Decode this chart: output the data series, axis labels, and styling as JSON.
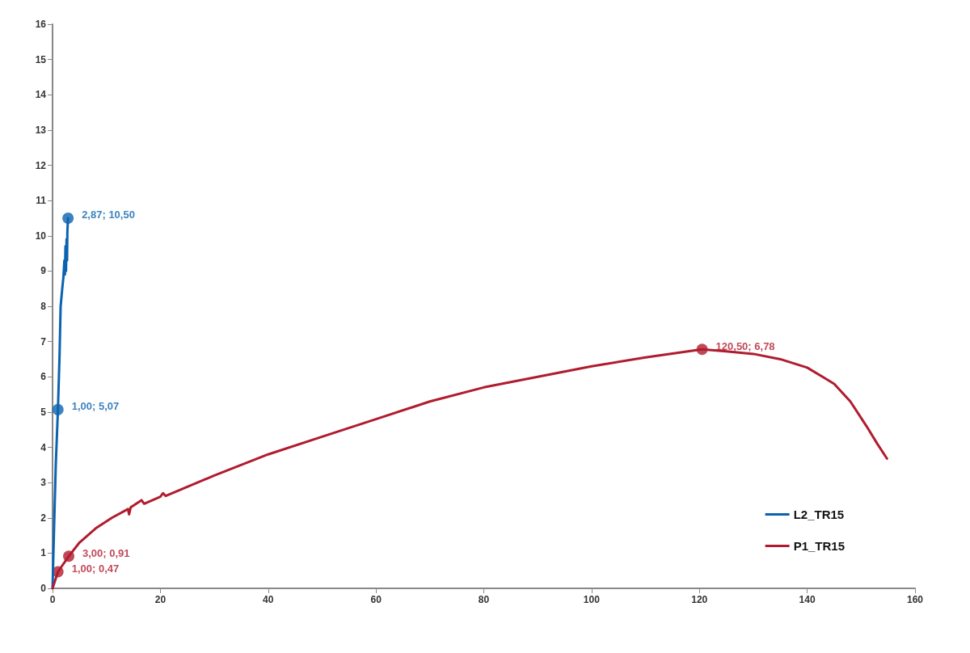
{
  "chart_data": {
    "type": "line",
    "series": [
      {
        "name": "L2_TR15",
        "color": "#0b63b0",
        "x": [
          0,
          0.3,
          0.6,
          1,
          1.3,
          1.5,
          1.8,
          2.0,
          2.2,
          2.3,
          2.4,
          2.5,
          2.6,
          2.7,
          2.75,
          2.87
        ],
        "values": [
          0,
          1.8,
          3.5,
          5.07,
          6.6,
          8.0,
          8.5,
          8.8,
          9.3,
          8.9,
          9.7,
          9.0,
          9.9,
          9.3,
          10.1,
          10.5
        ]
      },
      {
        "name": "P1_TR15",
        "color": "#b01c2e",
        "x": [
          0,
          1,
          3,
          5,
          8,
          11,
          14,
          14.2,
          14.5,
          16.5,
          17,
          20,
          20.5,
          21,
          30,
          40,
          50,
          60,
          70,
          80,
          90,
          100,
          110,
          120.5,
          125,
          130,
          135,
          140,
          145,
          148,
          151,
          153,
          154.8
        ],
        "values": [
          0,
          0.47,
          0.91,
          1.3,
          1.7,
          2.0,
          2.25,
          2.1,
          2.3,
          2.5,
          2.4,
          2.6,
          2.7,
          2.62,
          3.2,
          3.8,
          4.3,
          4.8,
          5.3,
          5.7,
          6.0,
          6.3,
          6.55,
          6.78,
          6.72,
          6.65,
          6.5,
          6.26,
          5.8,
          5.3,
          4.6,
          4.1,
          3.68
        ]
      }
    ],
    "annotations": [
      {
        "text": "2,87; 10,50",
        "x": 2.87,
        "y": 10.5
      },
      {
        "text": "1,00; 5,07",
        "x": 1,
        "y": 5.07
      },
      {
        "text": "3,00; 0,91",
        "x": 3,
        "y": 0.91
      },
      {
        "text": "1,00; 0,47",
        "x": 1,
        "y": 0.47
      },
      {
        "text": "120,50; 6,78",
        "x": 120.5,
        "y": 6.78
      }
    ],
    "xlim": [
      0,
      160
    ],
    "xticks": [
      0,
      20,
      40,
      60,
      80,
      100,
      120,
      140,
      160
    ],
    "ylim": [
      0,
      16
    ],
    "yticks": [
      0,
      1,
      2,
      3,
      4,
      5,
      6,
      7,
      8,
      9,
      10,
      11,
      12,
      13,
      14,
      15,
      16
    ],
    "grid": false,
    "legend": "bottom right",
    "marker": "none",
    "line_style": "solid"
  }
}
